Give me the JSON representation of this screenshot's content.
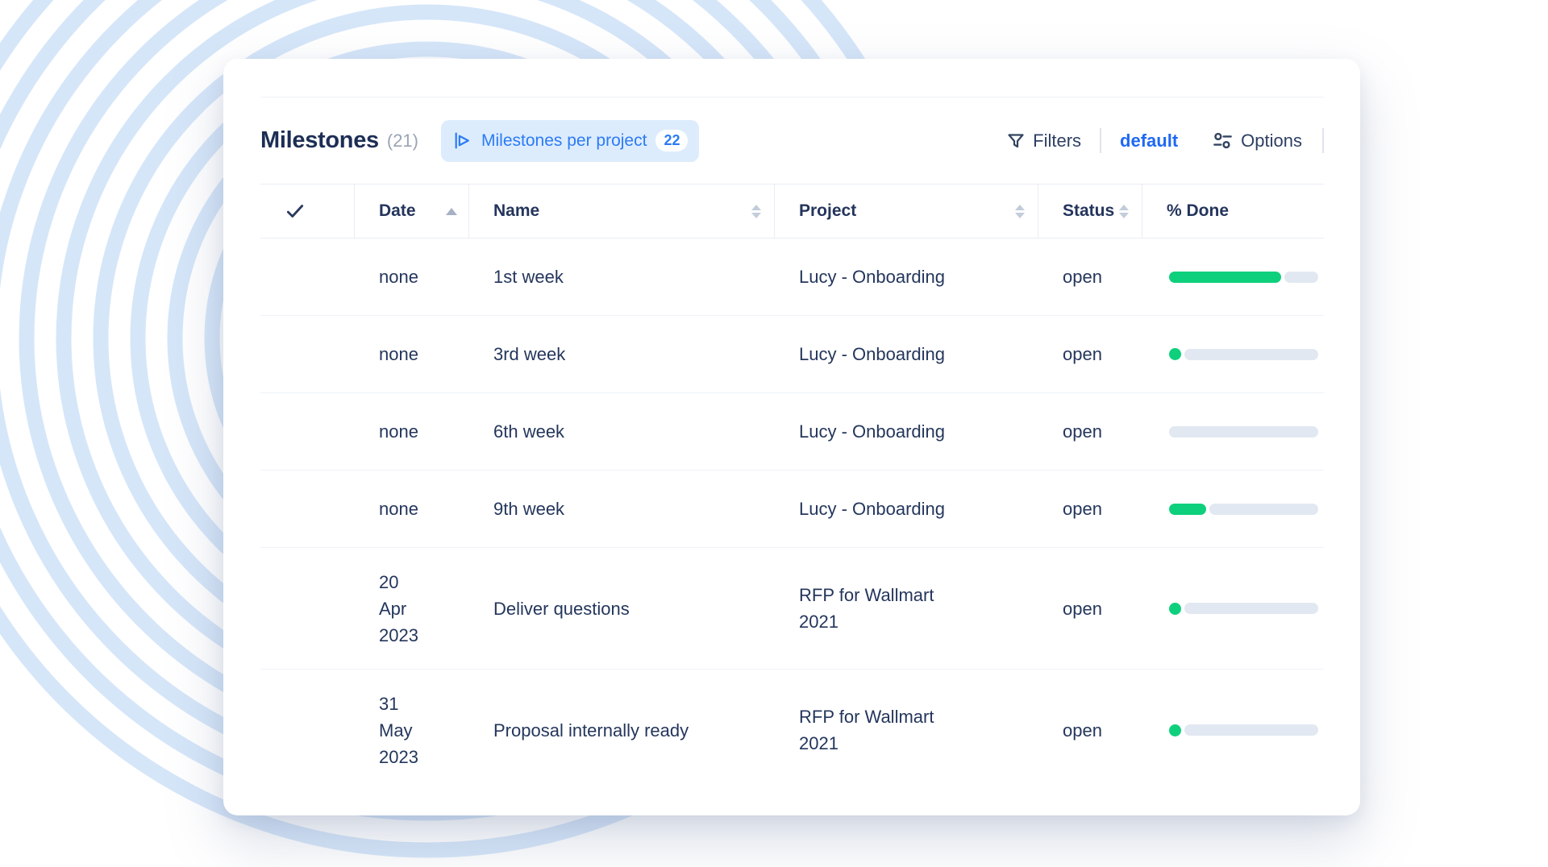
{
  "header": {
    "title": "Milestones",
    "count": "(21)",
    "chip": {
      "label": "Milestones per project",
      "count": "22"
    },
    "filters_label": "Filters",
    "view_label": "default",
    "options_label": "Options"
  },
  "table": {
    "columns": {
      "date": "Date",
      "name": "Name",
      "project": "Project",
      "status": "Status",
      "done": "% Done"
    },
    "sort": {
      "date": "ascending",
      "name": "none",
      "project": "none",
      "status": "none"
    },
    "rows": [
      {
        "date": "none",
        "name": "1st week",
        "project": "Lucy - Onboarding",
        "status": "open",
        "done_pct": 75
      },
      {
        "date": "none",
        "name": "3rd week",
        "project": "Lucy - Onboarding",
        "status": "open",
        "done_pct": 5
      },
      {
        "date": "none",
        "name": "6th week",
        "project": "Lucy - Onboarding",
        "status": "open",
        "done_pct": 0
      },
      {
        "date": "none",
        "name": "9th week",
        "project": "Lucy - Onboarding",
        "status": "open",
        "done_pct": 25
      },
      {
        "date": "20\nApr\n2023",
        "name": "Deliver questions",
        "project": "RFP for Wallmart 2021",
        "status": "open",
        "done_pct": 5
      },
      {
        "date": "31\nMay\n2023",
        "name": "Proposal internally ready",
        "project": "RFP for Wallmart 2021",
        "status": "open",
        "done_pct": 5
      }
    ]
  },
  "colors": {
    "accent_blue": "#2b7bf5",
    "link_blue": "#1f68f4",
    "progress_green": "#0ed07c",
    "progress_track": "#e2e8f1",
    "ring_blue": "#cfe2f8",
    "text_navy": "#24365c"
  }
}
